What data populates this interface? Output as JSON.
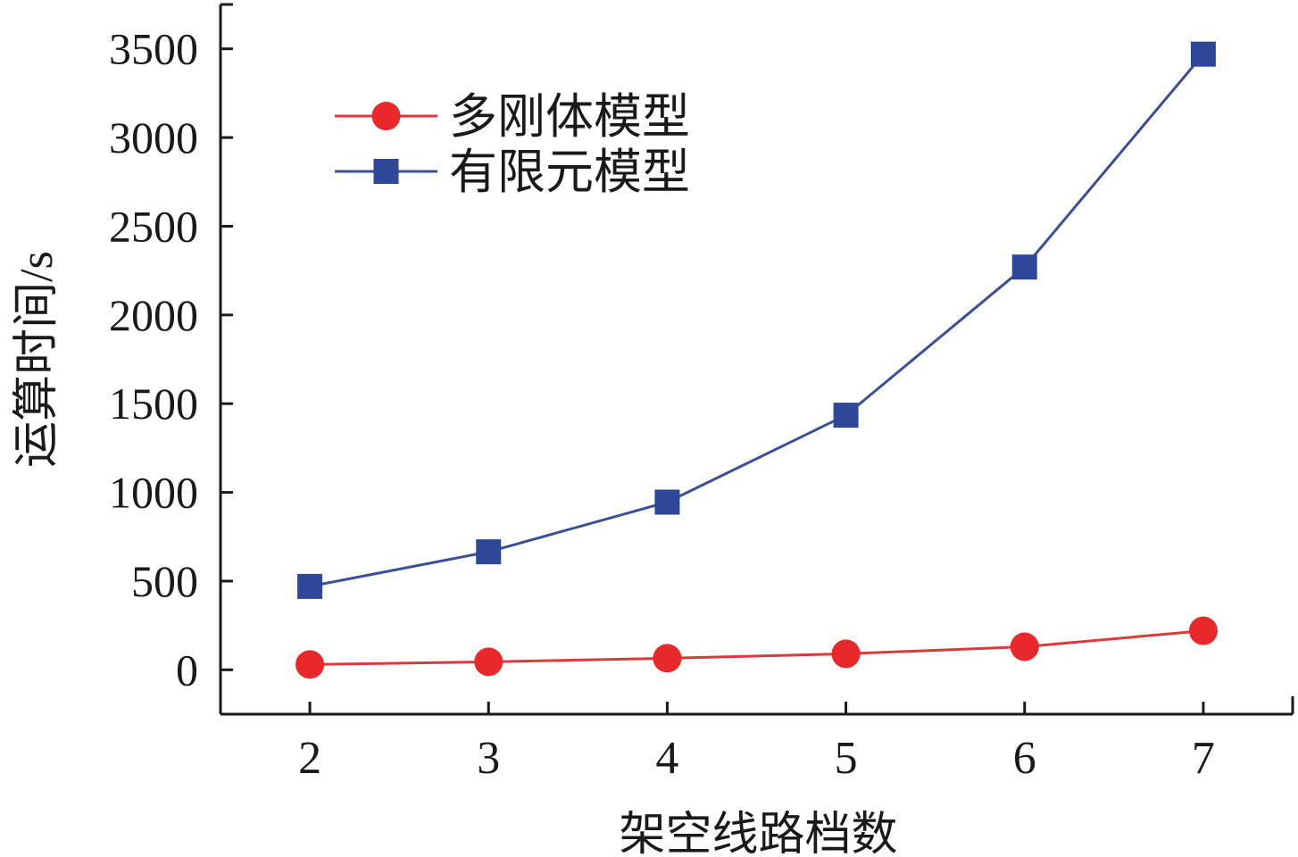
{
  "chart_data": {
    "type": "line",
    "title": "",
    "xlabel": "架空线路档数",
    "ylabel": "运算时间/s",
    "x": [
      2,
      3,
      4,
      5,
      6,
      7
    ],
    "x_tick_labels": [
      "2",
      "3",
      "4",
      "5",
      "6",
      "7"
    ],
    "xlim": [
      1.5,
      7.5
    ],
    "ylim": [
      -250,
      3750
    ],
    "y_ticks": [
      0,
      500,
      1000,
      1500,
      2000,
      2500,
      3000,
      3500
    ],
    "y_tick_labels": [
      "0",
      "500",
      "1000",
      "1500",
      "2000",
      "2500",
      "3000",
      "3500"
    ],
    "grid": false,
    "legend_position": "top-left",
    "series": [
      {
        "name": "多刚体模型",
        "marker": "circle",
        "color": "#e8282a",
        "line_color": "#d93a3a",
        "values": [
          30,
          45,
          65,
          90,
          130,
          220
        ]
      },
      {
        "name": "有限元模型",
        "marker": "square",
        "color": "#2e4798",
        "line_color": "#3a4f9a",
        "values": [
          470,
          665,
          945,
          1435,
          2270,
          3470
        ]
      }
    ]
  }
}
